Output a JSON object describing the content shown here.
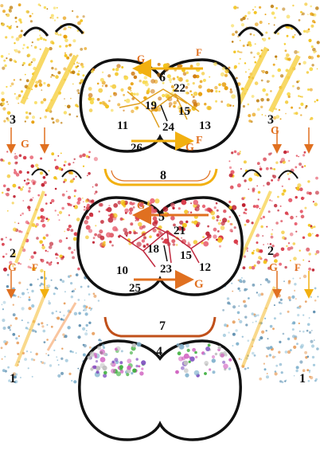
{
  "colors": {
    "yellow": "#f2c21a",
    "red": "#d83a48",
    "blue": "#7fb0cc",
    "orange": "#e07020",
    "outline": "#111111"
  },
  "labels": {
    "top_cell": {
      "arrow_top_G": "G",
      "arrow_top_F": "F",
      "num_6": "6",
      "num_22": "22",
      "num_19": "19",
      "num_15": "15",
      "num_24": "24",
      "num_11": "11",
      "num_13": "13",
      "num_26": "26",
      "arrow_bottom_G": "G",
      "arrow_bottom_F": "F"
    },
    "connector_8": "8",
    "mid_cell": {
      "arrow_top_G": "G",
      "num_5": "5",
      "num_21": "21",
      "num_18": "18",
      "num_15": "15",
      "num_23": "23",
      "num_10": "10",
      "num_12": "12",
      "num_25": "25",
      "arrow_bottom_G": "G"
    },
    "connector_7": "7",
    "bottom_cell": {
      "num_4": "4"
    },
    "left": {
      "num_3": "3",
      "g_upper": "G",
      "num_2": "2",
      "g_lower": "G",
      "f_lower": "F",
      "num_1": "1"
    },
    "right": {
      "num_3": "3",
      "g_upper": "G",
      "num_2": "2",
      "g_lower": "G",
      "f_lower": "F",
      "num_1": "1"
    }
  }
}
